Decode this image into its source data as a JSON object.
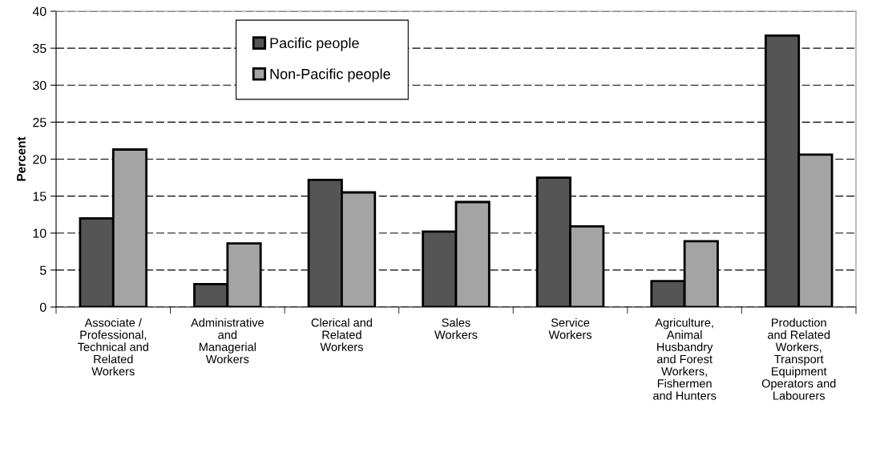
{
  "chart_data": {
    "type": "bar",
    "ylabel": "Percent",
    "categories": [
      "Associate /\nProfessional,\nTechnical and\nRelated\nWorkers",
      "Administrative\nand\nManagerial\nWorkers",
      "Clerical and\nRelated\nWorkers",
      "Sales\nWorkers",
      "Service\nWorkers",
      "Agriculture,\nAnimal\nHusbandry\nand Forest\nWorkers,\nFishermen\nand Hunters",
      "Production\nand Related\nWorkers,\nTransport\nEquipment\nOperators and\nLabourers"
    ],
    "series": [
      {
        "name": "Pacific people",
        "color": "#555555",
        "values": [
          12.0,
          3.1,
          17.2,
          10.2,
          17.5,
          3.5,
          36.7
        ]
      },
      {
        "name": "Non-Pacific people",
        "color": "#a4a4a4",
        "values": [
          21.3,
          8.6,
          15.5,
          14.2,
          10.9,
          8.9,
          20.6
        ]
      }
    ],
    "ylim": [
      0,
      40
    ],
    "yticks": [
      0,
      5,
      10,
      15,
      20,
      25,
      30,
      35,
      40
    ],
    "grid": "y",
    "legend": "top left"
  }
}
